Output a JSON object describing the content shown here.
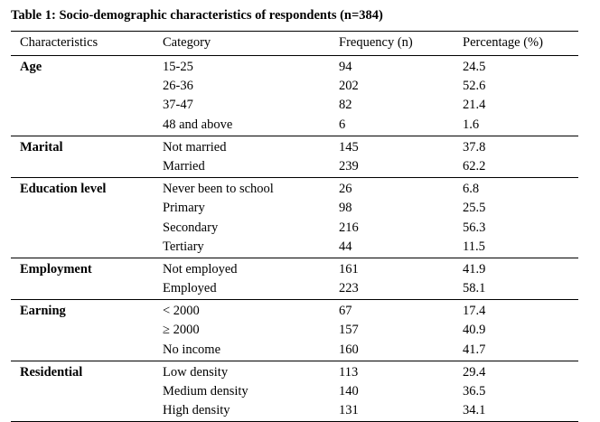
{
  "caption": "Table 1: Socio-demographic characteristics of respondents (n=384)",
  "headers": [
    "Characteristics",
    "Category",
    "Frequency (n)",
    "Percentage (%)"
  ],
  "groups": [
    {
      "label": "Age",
      "rows": [
        {
          "category": "15-25",
          "frequency": "94",
          "percentage": "24.5"
        },
        {
          "category": "26-36",
          "frequency": "202",
          "percentage": "52.6"
        },
        {
          "category": "37-47",
          "frequency": "82",
          "percentage": "21.4"
        },
        {
          "category": "48 and above",
          "frequency": "6",
          "percentage": "1.6"
        }
      ]
    },
    {
      "label": "Marital",
      "rows": [
        {
          "category": "Not married",
          "frequency": "145",
          "percentage": "37.8"
        },
        {
          "category": "Married",
          "frequency": "239",
          "percentage": "62.2"
        }
      ]
    },
    {
      "label": "Education level",
      "rows": [
        {
          "category": "Never been to school",
          "frequency": "26",
          "percentage": "6.8"
        },
        {
          "category": "Primary",
          "frequency": "98",
          "percentage": "25.5"
        },
        {
          "category": "Secondary",
          "frequency": "216",
          "percentage": "56.3"
        },
        {
          "category": "Tertiary",
          "frequency": "44",
          "percentage": "11.5"
        }
      ]
    },
    {
      "label": "Employment",
      "rows": [
        {
          "category": "Not employed",
          "frequency": "161",
          "percentage": "41.9"
        },
        {
          "category": "Employed",
          "frequency": "223",
          "percentage": "58.1"
        }
      ]
    },
    {
      "label": "Earning",
      "rows": [
        {
          "category": "< 2000",
          "frequency": "67",
          "percentage": "17.4"
        },
        {
          "category": "≥ 2000",
          "frequency": "157",
          "percentage": "40.9"
        },
        {
          "category": "No income",
          "frequency": "160",
          "percentage": "41.7"
        }
      ]
    },
    {
      "label": "Residential",
      "rows": [
        {
          "category": "Low density",
          "frequency": "113",
          "percentage": "29.4"
        },
        {
          "category": "Medium density",
          "frequency": "140",
          "percentage": "36.5"
        },
        {
          "category": "High density",
          "frequency": "131",
          "percentage": "34.1"
        }
      ]
    }
  ]
}
